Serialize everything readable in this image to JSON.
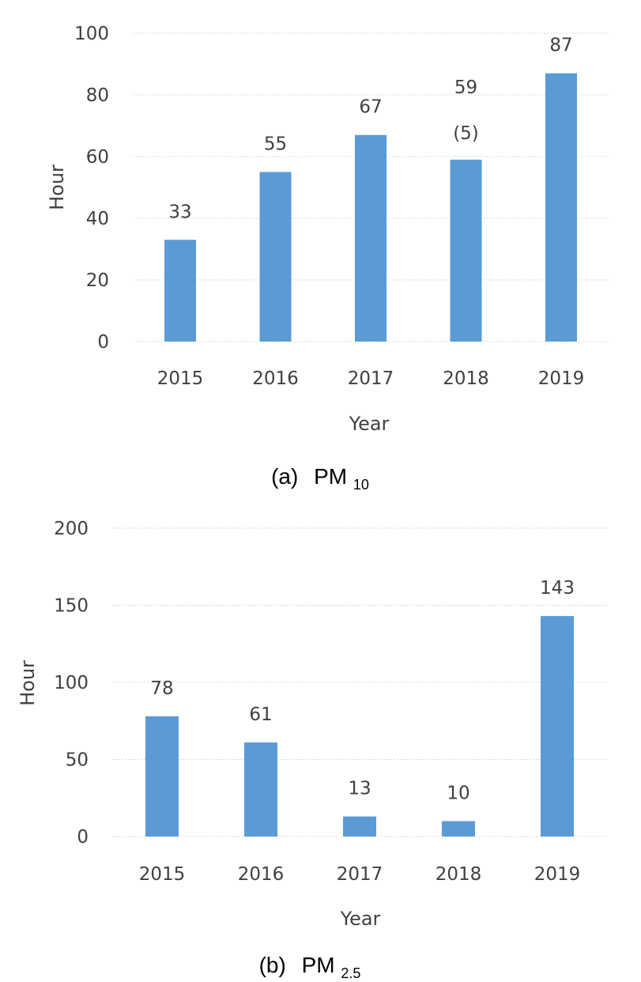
{
  "chart_data": [
    {
      "type": "bar",
      "categories": [
        "2015",
        "2016",
        "2017",
        "2018",
        "2019"
      ],
      "values": [
        33,
        55,
        67,
        59,
        87
      ],
      "data_labels": [
        "33",
        "55",
        "67",
        "59",
        "87"
      ],
      "extra_annotation": {
        "category": "2018",
        "text": "(5)"
      },
      "xlabel": "Year",
      "ylabel": "Hour",
      "ylim": [
        0,
        100
      ],
      "yticks": [
        0,
        20,
        40,
        60,
        80,
        100
      ],
      "grid": true,
      "color": "#5b9bd5",
      "caption": {
        "prefix": "(a)",
        "main": "PM",
        "sub": "10"
      }
    },
    {
      "type": "bar",
      "categories": [
        "2015",
        "2016",
        "2017",
        "2018",
        "2019"
      ],
      "values": [
        78,
        61,
        13,
        10,
        143
      ],
      "data_labels": [
        "78",
        "61",
        "13",
        "10",
        "143"
      ],
      "xlabel": "Year",
      "ylabel": "Hour",
      "ylim": [
        0,
        200
      ],
      "yticks": [
        0,
        50,
        100,
        150,
        200
      ],
      "grid": true,
      "color": "#5b9bd5",
      "caption": {
        "prefix": "(b)",
        "main": "PM",
        "sub": "2.5"
      }
    }
  ]
}
